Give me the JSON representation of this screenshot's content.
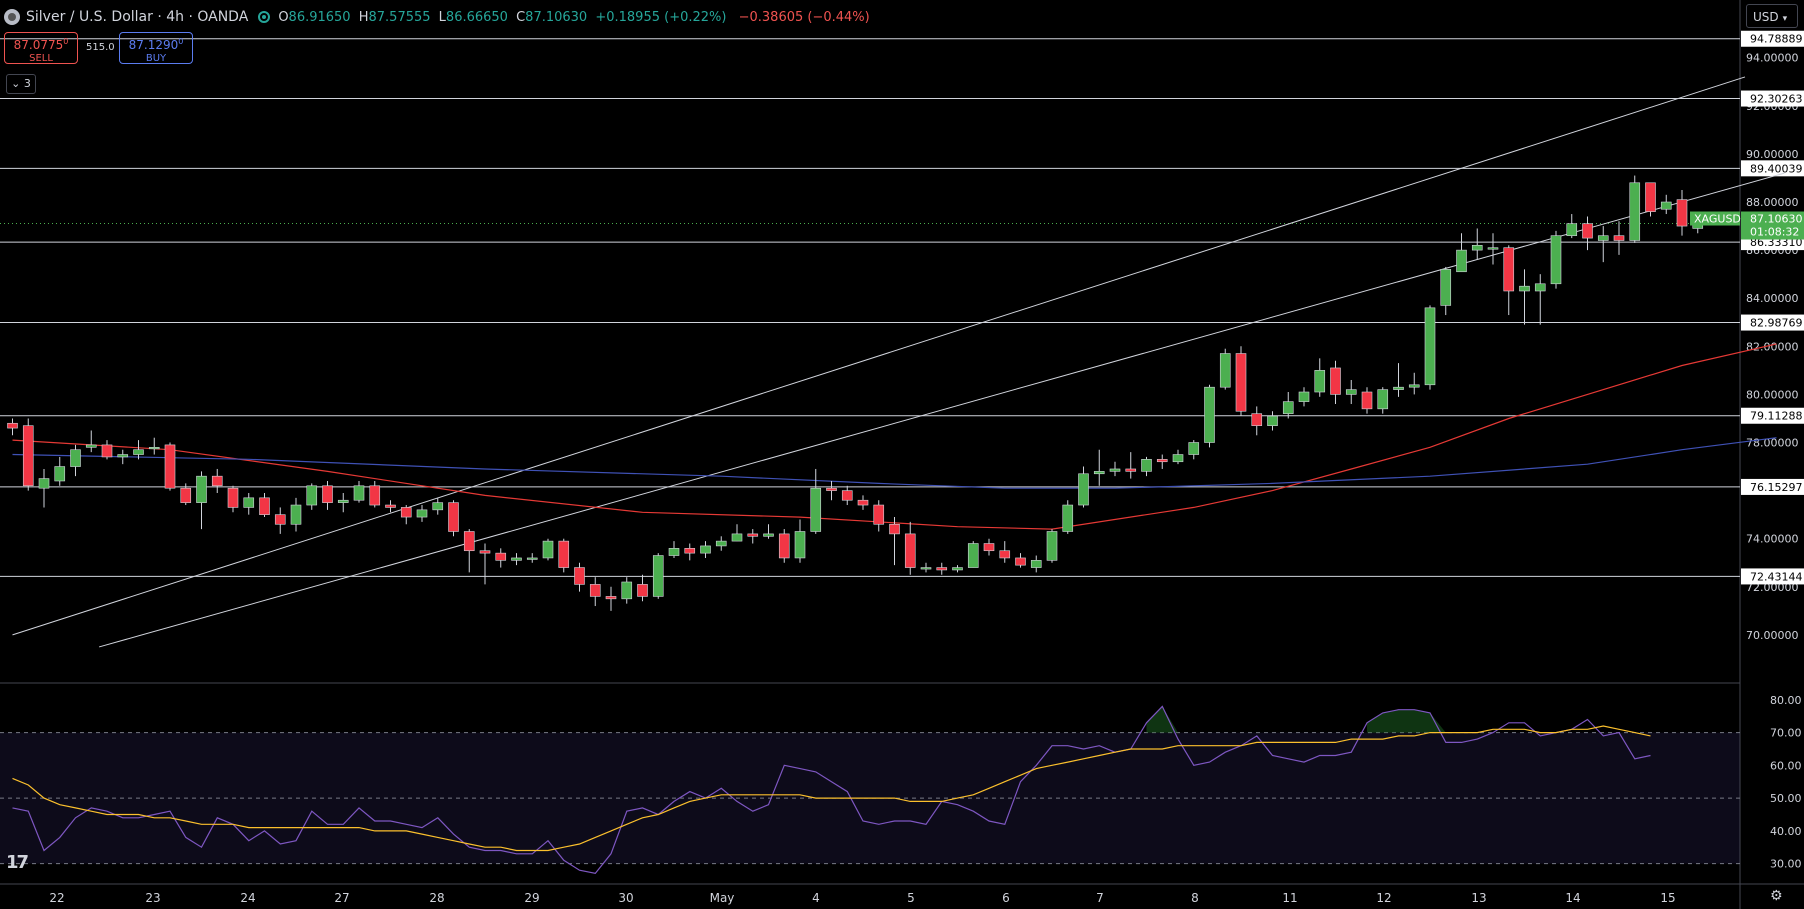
{
  "header": {
    "symbol_title": "Silver / U.S. Dollar · 4h · OANDA",
    "open_label": "O",
    "open": "86.91650",
    "high_label": "H",
    "high": "87.57555",
    "low_label": "L",
    "low": "86.66650",
    "close_label": "C",
    "close": "87.10630",
    "change": "+0.18955 (+0.22%)",
    "change2": "−0.38605 (−0.44%)"
  },
  "trade": {
    "sell_price": "87.0775",
    "sell_sup": "0",
    "sell_label": "SELL",
    "spread": "515.0",
    "buy_price": "87.1290",
    "buy_sup": "0",
    "buy_label": "BUY"
  },
  "indicators_count": "3",
  "currency": "USD",
  "colors": {
    "up": "#4caf50",
    "down": "#f23645",
    "ma_fast": "#e53935",
    "ma_slow": "#3f51b5",
    "rsi": "#7e57c2",
    "rsi_ma": "#fbc02d",
    "level_line": "#d1d4dc"
  },
  "chart_data": {
    "type": "candlestick",
    "symbol": "XAGUSD",
    "timeframe": "4h",
    "price_axis": {
      "ticks": [
        "70.00000",
        "72.00000",
        "74.00000",
        "76.00000",
        "78.00000",
        "80.00000",
        "82.00000",
        "84.00000",
        "86.00000",
        "88.00000",
        "90.00000",
        "92.00000",
        "94.00000"
      ],
      "range": [
        68.0,
        96.4
      ]
    },
    "time_axis": {
      "labels": [
        "22",
        "23",
        "24",
        "27",
        "28",
        "29",
        "30",
        "May",
        "4",
        "5",
        "6",
        "7",
        "8",
        "11",
        "12",
        "13",
        "14",
        "15"
      ]
    },
    "current_price": {
      "label": "XAGUSD",
      "price": "87.10630",
      "countdown": "01:08:32",
      "value": 87.1063
    },
    "horizontal_levels": [
      {
        "value": 94.78889,
        "label": "94.78889"
      },
      {
        "value": 92.30263,
        "label": "92.30263"
      },
      {
        "value": 89.40039,
        "label": "89.40039"
      },
      {
        "value": 86.3331,
        "label": "86.33310"
      },
      {
        "value": 82.98769,
        "label": "82.98769"
      },
      {
        "value": 79.11288,
        "label": "79.11288"
      },
      {
        "value": 76.15297,
        "label": "76.15297"
      },
      {
        "value": 72.43144,
        "label": "72.43144"
      }
    ],
    "channel_lines": [
      {
        "from": [
          0,
          70.0
        ],
        "to": [
          110,
          93.2
        ]
      },
      {
        "from": [
          5.5,
          69.5
        ],
        "to": [
          112.5,
          89.2
        ]
      }
    ],
    "candles": [
      [
        78.8,
        78.6,
        79.0,
        78.3
      ],
      [
        78.7,
        76.2,
        79.0,
        76.0
      ],
      [
        76.1,
        76.5,
        76.9,
        75.3
      ],
      [
        76.4,
        77.0,
        77.4,
        76.2
      ],
      [
        77.0,
        77.7,
        77.9,
        76.6
      ],
      [
        77.8,
        77.9,
        78.5,
        77.6
      ],
      [
        77.9,
        77.4,
        78.1,
        77.3
      ],
      [
        77.4,
        77.5,
        77.7,
        77.1
      ],
      [
        77.5,
        77.7,
        78.1,
        77.3
      ],
      [
        77.8,
        77.8,
        78.2,
        77.5
      ],
      [
        77.9,
        76.1,
        78.0,
        76.0
      ],
      [
        76.1,
        75.5,
        76.3,
        75.4
      ],
      [
        75.5,
        76.6,
        76.8,
        74.4
      ],
      [
        76.6,
        76.2,
        76.9,
        75.9
      ],
      [
        76.1,
        75.3,
        76.2,
        75.1
      ],
      [
        75.3,
        75.7,
        75.9,
        75.0
      ],
      [
        75.7,
        75.0,
        75.9,
        74.9
      ],
      [
        75.0,
        74.6,
        75.3,
        74.2
      ],
      [
        74.6,
        75.4,
        75.7,
        74.3
      ],
      [
        75.4,
        76.2,
        76.3,
        75.2
      ],
      [
        76.2,
        75.5,
        76.4,
        75.2
      ],
      [
        75.5,
        75.6,
        75.9,
        75.1
      ],
      [
        75.6,
        76.2,
        76.4,
        75.5
      ],
      [
        76.2,
        75.4,
        76.4,
        75.3
      ],
      [
        75.4,
        75.3,
        75.6,
        75.1
      ],
      [
        75.3,
        74.9,
        75.4,
        74.6
      ],
      [
        74.9,
        75.2,
        75.4,
        74.7
      ],
      [
        75.2,
        75.5,
        75.7,
        75.0
      ],
      [
        75.5,
        74.3,
        75.6,
        74.1
      ],
      [
        74.3,
        73.5,
        74.4,
        72.6
      ],
      [
        73.5,
        73.4,
        73.8,
        72.1
      ],
      [
        73.4,
        73.1,
        73.6,
        72.8
      ],
      [
        73.1,
        73.2,
        73.4,
        72.9
      ],
      [
        73.2,
        73.2,
        73.4,
        73.0
      ],
      [
        73.2,
        73.9,
        74.0,
        73.1
      ],
      [
        73.9,
        72.8,
        74.0,
        72.6
      ],
      [
        72.8,
        72.1,
        73.0,
        71.8
      ],
      [
        72.1,
        71.6,
        72.4,
        71.2
      ],
      [
        71.6,
        71.5,
        72.0,
        71.0
      ],
      [
        71.5,
        72.2,
        72.4,
        71.3
      ],
      [
        72.1,
        71.6,
        72.5,
        71.4
      ],
      [
        71.6,
        73.3,
        73.4,
        71.5
      ],
      [
        73.3,
        73.6,
        73.9,
        73.2
      ],
      [
        73.6,
        73.4,
        73.8,
        73.1
      ],
      [
        73.4,
        73.7,
        73.9,
        73.2
      ],
      [
        73.7,
        73.9,
        74.1,
        73.5
      ],
      [
        73.9,
        74.2,
        74.6,
        73.9
      ],
      [
        74.2,
        74.1,
        74.4,
        73.8
      ],
      [
        74.1,
        74.2,
        74.6,
        74.0
      ],
      [
        74.2,
        73.2,
        74.4,
        73.0
      ],
      [
        73.2,
        74.3,
        74.8,
        73.0
      ],
      [
        74.3,
        76.1,
        76.9,
        74.2
      ],
      [
        76.1,
        76.0,
        76.4,
        75.6
      ],
      [
        76.0,
        75.6,
        76.2,
        75.4
      ],
      [
        75.6,
        75.4,
        75.8,
        75.2
      ],
      [
        75.4,
        74.6,
        75.6,
        74.3
      ],
      [
        74.6,
        74.2,
        74.9,
        72.9
      ],
      [
        74.2,
        72.8,
        74.7,
        72.5
      ],
      [
        72.8,
        72.8,
        73.0,
        72.6
      ],
      [
        72.8,
        72.7,
        73.0,
        72.5
      ],
      [
        72.7,
        72.8,
        72.9,
        72.6
      ],
      [
        72.8,
        73.8,
        73.9,
        72.8
      ],
      [
        73.8,
        73.5,
        74.0,
        73.3
      ],
      [
        73.5,
        73.2,
        73.9,
        73.0
      ],
      [
        73.2,
        72.9,
        73.4,
        72.8
      ],
      [
        72.8,
        73.1,
        73.3,
        72.6
      ],
      [
        73.1,
        74.3,
        74.4,
        73.0
      ],
      [
        74.3,
        75.4,
        75.6,
        74.2
      ],
      [
        75.4,
        76.7,
        77.0,
        75.3
      ],
      [
        76.7,
        76.8,
        77.7,
        76.2
      ],
      [
        76.8,
        76.9,
        77.2,
        76.6
      ],
      [
        76.9,
        76.8,
        77.6,
        76.5
      ],
      [
        76.8,
        77.3,
        77.4,
        76.6
      ],
      [
        77.3,
        77.2,
        77.5,
        76.9
      ],
      [
        77.2,
        77.5,
        77.7,
        77.1
      ],
      [
        77.5,
        78.0,
        78.1,
        77.3
      ],
      [
        78.0,
        80.3,
        80.4,
        77.8
      ],
      [
        80.3,
        81.7,
        81.9,
        80.2
      ],
      [
        81.7,
        79.3,
        82.0,
        79.1
      ],
      [
        79.2,
        78.7,
        79.5,
        78.3
      ],
      [
        78.7,
        79.1,
        79.3,
        78.5
      ],
      [
        79.2,
        79.7,
        80.1,
        79.0
      ],
      [
        79.7,
        80.1,
        80.3,
        79.5
      ],
      [
        80.1,
        81.0,
        81.5,
        79.9
      ],
      [
        81.1,
        80.0,
        81.4,
        79.6
      ],
      [
        80.0,
        80.2,
        80.6,
        79.6
      ],
      [
        80.1,
        79.4,
        80.3,
        79.2
      ],
      [
        79.4,
        80.2,
        80.3,
        79.2
      ],
      [
        80.2,
        80.3,
        81.3,
        79.9
      ],
      [
        80.3,
        80.4,
        80.9,
        80.0
      ],
      [
        80.4,
        83.6,
        83.7,
        80.2
      ],
      [
        83.7,
        85.2,
        85.3,
        83.3
      ],
      [
        85.1,
        86.0,
        86.7,
        85.1
      ],
      [
        86.0,
        86.2,
        86.9,
        85.6
      ],
      [
        86.1,
        86.1,
        86.7,
        85.4
      ],
      [
        86.1,
        84.3,
        86.2,
        83.3
      ],
      [
        84.3,
        84.5,
        85.2,
        82.9
      ],
      [
        84.3,
        84.6,
        85.0,
        82.9
      ],
      [
        84.6,
        86.6,
        86.8,
        84.4
      ],
      [
        86.6,
        87.1,
        87.5,
        86.5
      ],
      [
        87.1,
        86.5,
        87.4,
        86.0
      ],
      [
        86.4,
        86.6,
        87.0,
        85.5
      ],
      [
        86.6,
        86.4,
        87.2,
        85.8
      ],
      [
        86.4,
        88.8,
        89.1,
        86.3
      ],
      [
        88.8,
        87.6,
        88.8,
        87.4
      ],
      [
        87.7,
        88.0,
        88.3,
        87.5
      ],
      [
        88.1,
        87.0,
        88.5,
        86.6
      ],
      [
        86.9,
        87.1,
        87.6,
        86.7
      ]
    ],
    "moving_averages": [
      {
        "name": "MA fast",
        "color": "#e53935",
        "points": [
          [
            0,
            78.1
          ],
          [
            10,
            77.7
          ],
          [
            20,
            76.8
          ],
          [
            30,
            75.8
          ],
          [
            40,
            75.1
          ],
          [
            50,
            74.9
          ],
          [
            60,
            74.5
          ],
          [
            66,
            74.4
          ],
          [
            75,
            75.3
          ],
          [
            80,
            76.0
          ],
          [
            85,
            76.9
          ],
          [
            90,
            77.8
          ],
          [
            95,
            79.0
          ],
          [
            100,
            80.0
          ],
          [
            106,
            81.2
          ],
          [
            112,
            82.1
          ]
        ]
      },
      {
        "name": "MA slow",
        "color": "#3f51b5",
        "points": [
          [
            0,
            77.5
          ],
          [
            15,
            77.3
          ],
          [
            30,
            76.9
          ],
          [
            45,
            76.6
          ],
          [
            55,
            76.3
          ],
          [
            63,
            76.1
          ],
          [
            70,
            76.1
          ],
          [
            80,
            76.3
          ],
          [
            90,
            76.6
          ],
          [
            100,
            77.1
          ],
          [
            106,
            77.7
          ],
          [
            112,
            78.2
          ]
        ]
      }
    ],
    "rsi": {
      "ticks": [
        "30.00",
        "40.00",
        "50.00",
        "60.00",
        "70.00",
        "80.00"
      ],
      "range": [
        25,
        83
      ],
      "bands": [
        30,
        50,
        70
      ],
      "values": [
        47,
        46,
        34,
        38,
        44,
        47,
        46,
        44,
        44,
        45,
        46,
        38,
        35,
        44,
        42,
        37,
        40,
        36,
        37,
        46,
        42,
        42,
        47,
        43,
        43,
        42,
        41,
        44,
        39,
        35,
        34,
        34,
        33,
        33,
        37,
        31,
        28,
        27,
        33,
        46,
        47,
        45,
        49,
        52,
        50,
        53,
        49,
        46,
        48,
        60,
        59,
        58,
        55,
        52,
        43,
        42,
        43,
        43,
        42,
        49,
        48,
        46,
        43,
        42,
        55,
        60,
        66,
        66,
        65,
        66,
        64,
        65,
        73,
        78,
        68,
        60,
        61,
        64,
        66,
        69,
        63,
        62,
        61,
        63,
        63,
        64,
        73,
        76,
        77,
        77,
        76,
        67,
        67,
        68,
        70,
        73,
        73,
        69,
        70,
        71,
        74,
        69,
        70,
        62,
        63
      ],
      "ma_values": [
        56,
        54,
        50,
        48,
        47,
        46,
        45,
        45,
        45,
        44,
        44,
        43,
        42,
        42,
        42,
        41,
        41,
        41,
        41,
        41,
        41,
        41,
        41,
        40,
        40,
        40,
        39,
        38,
        37,
        36,
        35,
        35,
        34,
        34,
        34,
        35,
        36,
        38,
        40,
        42,
        44,
        45,
        47,
        49,
        50,
        51,
        51,
        51,
        51,
        51,
        51,
        50,
        50,
        50,
        50,
        50,
        50,
        49,
        49,
        49,
        50,
        51,
        53,
        55,
        57,
        59,
        60,
        61,
        62,
        63,
        64,
        65,
        65,
        65,
        66,
        66,
        66,
        66,
        66,
        67,
        67,
        67,
        67,
        67,
        67,
        68,
        68,
        68,
        69,
        69,
        70,
        70,
        70,
        70,
        71,
        71,
        71,
        70,
        70,
        71,
        71,
        72,
        71,
        70,
        69
      ]
    },
    "rsi_fill_regions": [
      [
        72,
        74.5
      ],
      [
        86,
        90.5
      ]
    ]
  }
}
